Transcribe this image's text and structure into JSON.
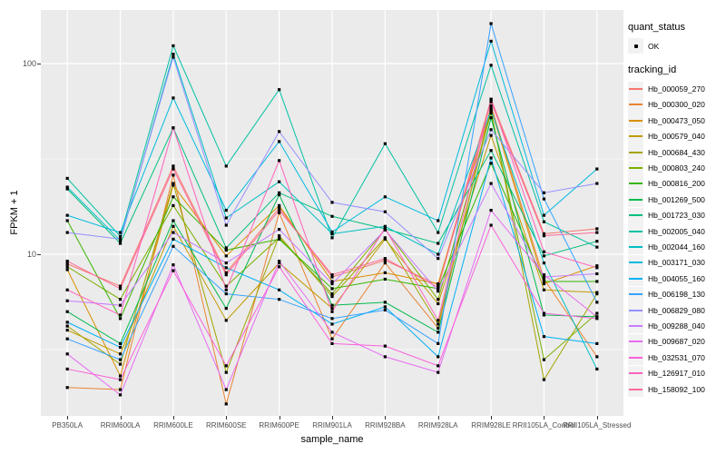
{
  "figure": {
    "y_axis_title": "FPKM + 1",
    "x_axis_title": "sample_name",
    "y_tick_labels": [
      "100",
      "10"
    ],
    "legend": {
      "quant_status_title": "quant_status",
      "ok_label": "OK",
      "tracking_title": "tracking_id"
    }
  },
  "chart_data": {
    "type": "line",
    "title": "",
    "xlabel": "sample_name",
    "ylabel": "FPKM + 1",
    "x_scale": "categorical",
    "y_scale": "log10",
    "y_major_ticks": [
      10,
      100
    ],
    "y_minor_gridlines": [
      3.162,
      31.623
    ],
    "y_displayed_range": [
      1.42,
      191
    ],
    "grid": true,
    "legend_position": "right",
    "panel_bg": "#EBEBEB",
    "grid_color": "#FFFFFF",
    "point_color": "#000000",
    "point_shape": "square",
    "quant_status": {
      "title": "quant_status",
      "values": [
        "OK"
      ]
    },
    "legend_title": "tracking_id",
    "categories": [
      "PB350LA",
      "RRIM600LA",
      "RRIM600LE",
      "RRIM600SE",
      "RRIM600PE",
      "RRIM901LA",
      "RRIM928BA",
      "RRIM928LA",
      "RRIM928LE",
      "RRII105LA_Control",
      "RRII105LA_Stressed"
    ],
    "series": [
      {
        "name": "Hb_000059_270",
        "color": "#F8766D",
        "values": [
          8.9,
          6.8,
          29,
          8,
          17.5,
          7.6,
          9.3,
          6.9,
          65,
          12.8,
          13.6
        ]
      },
      {
        "name": "Hb_000300_020",
        "color": "#EA8331",
        "values": [
          2,
          1.95,
          26,
          1.64,
          16.5,
          3.6,
          9,
          4.1,
          60,
          7.4,
          2.9
        ]
      },
      {
        "name": "Hb_000473_050",
        "color": "#D89000",
        "values": [
          8.3,
          2.3,
          23,
          9.8,
          18,
          7.2,
          8,
          7,
          58,
          7,
          8.7
        ]
      },
      {
        "name": "Hb_000579_040",
        "color": "#C09B00",
        "values": [
          4,
          3,
          14,
          4.5,
          9,
          5.2,
          12,
          5.5,
          42,
          6.5,
          6.3
        ]
      },
      {
        "name": "Hb_000684_430",
        "color": "#A3A500",
        "values": [
          4.2,
          2.65,
          23.5,
          2.4,
          12.5,
          6,
          12.2,
          4.3,
          57,
          2.2,
          6.2
        ]
      },
      {
        "name": "Hb_000803_240",
        "color": "#7CAE00",
        "values": [
          8.6,
          5.8,
          18,
          6.8,
          12.2,
          6.2,
          13.5,
          5.8,
          55,
          2.8,
          4.9
        ]
      },
      {
        "name": "Hb_000816_200",
        "color": "#39B600",
        "values": [
          15,
          4.6,
          20,
          10.5,
          12,
          6.6,
          7.4,
          6.6,
          30,
          7.2,
          7.2
        ]
      },
      {
        "name": "Hb_001269_500",
        "color": "#00BB4E",
        "values": [
          5,
          3.4,
          15,
          5.2,
          20.5,
          5.4,
          5.6,
          3.9,
          52,
          4.8,
          4.7
        ]
      },
      {
        "name": "Hb_001723_030",
        "color": "#00BF7D",
        "values": [
          22,
          11.4,
          46,
          10.8,
          21,
          15.8,
          13.6,
          11.4,
          35,
          9.8,
          11.7
        ]
      },
      {
        "name": "Hb_002005_040",
        "color": "#00C1A3",
        "values": [
          25,
          12.4,
          124,
          29,
          73,
          12.2,
          38,
          13,
          98,
          14.8,
          10.9
        ]
      },
      {
        "name": "Hb_002044_160",
        "color": "#00BFC4",
        "values": [
          22.5,
          11.8,
          112,
          15.5,
          24,
          12.8,
          14,
          10,
          57,
          9,
          2.5
        ]
      },
      {
        "name": "Hb_003171_030",
        "color": "#00BAE0",
        "values": [
          16,
          13,
          66,
          17,
          39,
          13.1,
          20,
          15,
          131,
          16,
          28
        ]
      },
      {
        "name": "Hb_004055_160",
        "color": "#00B0F6",
        "values": [
          4.4,
          3.25,
          12,
          8.5,
          6.5,
          4.3,
          5.3,
          2.9,
          32,
          3.7,
          3.4
        ]
      },
      {
        "name": "Hb_006198_130",
        "color": "#35A2FF",
        "values": [
          3.6,
          2.8,
          11,
          6.2,
          5.8,
          4.6,
          5.1,
          3.4,
          162,
          19.5,
          5.6
        ]
      },
      {
        "name": "Hb_006829_080",
        "color": "#9590FF",
        "values": [
          13,
          12,
          108,
          14.2,
          44,
          18.7,
          16.7,
          9.5,
          45,
          21,
          23.5
        ]
      },
      {
        "name": "Hb_009288_040",
        "color": "#C77CFF",
        "values": [
          5.7,
          5.4,
          13,
          9,
          13.5,
          7,
          13.4,
          6.4,
          23.5,
          7.6,
          7.9
        ]
      },
      {
        "name": "Hb_009687_020",
        "color": "#E76BF3",
        "values": [
          3,
          1.83,
          8.8,
          1.95,
          9.2,
          3.9,
          2.9,
          2.4,
          17,
          7.8,
          4.7
        ]
      },
      {
        "name": "Hb_032531_070",
        "color": "#FA62DB",
        "values": [
          2.5,
          2.2,
          8.2,
          2.6,
          8.6,
          3.4,
          3.3,
          2.6,
          14.2,
          4.9,
          4.6
        ]
      },
      {
        "name": "Hb_126917_010",
        "color": "#FF62BC",
        "values": [
          6.5,
          4.8,
          46,
          6.5,
          31,
          5,
          13.7,
          4.5,
          65,
          10.3,
          8.5
        ]
      },
      {
        "name": "Hb_158092_100",
        "color": "#FF6A98",
        "values": [
          9.2,
          6.6,
          28,
          7.8,
          17,
          7.8,
          9.5,
          6.7,
          63,
          12.5,
          13
        ]
      }
    ]
  }
}
